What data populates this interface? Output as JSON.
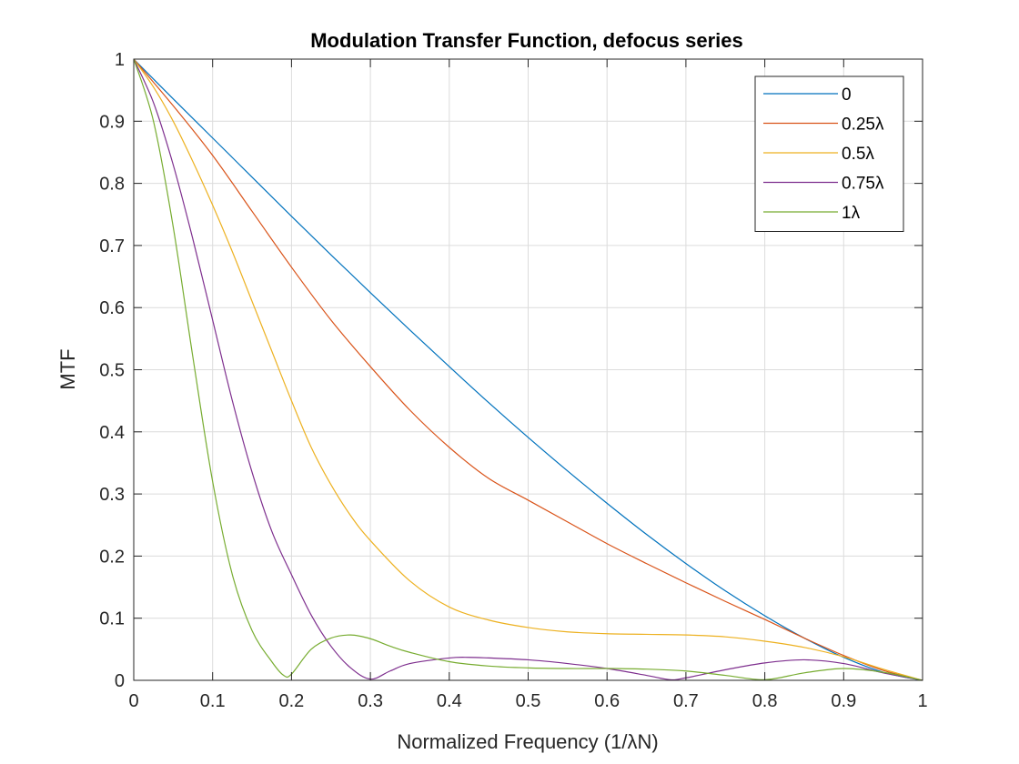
{
  "chart_data": {
    "type": "line",
    "title": "Modulation Transfer Function, defocus series",
    "xlabel": "Normalized Frequency (1/λN)",
    "ylabel": "MTF",
    "xlim": [
      0,
      1
    ],
    "ylim": [
      0,
      1
    ],
    "xticks": [
      0,
      0.1,
      0.2,
      0.3,
      0.4,
      0.5,
      0.6,
      0.7,
      0.8,
      0.9,
      1
    ],
    "xtick_labels": [
      "0",
      "0.1",
      "0.2",
      "0.3",
      "0.4",
      "0.5",
      "0.6",
      "0.7",
      "0.8",
      "0.9",
      "1"
    ],
    "yticks": [
      0,
      0.1,
      0.2,
      0.3,
      0.4,
      0.5,
      0.6,
      0.7,
      0.8,
      0.9,
      1
    ],
    "ytick_labels": [
      "0",
      "0.1",
      "0.2",
      "0.3",
      "0.4",
      "0.5",
      "0.6",
      "0.7",
      "0.8",
      "0.9",
      "1"
    ],
    "grid": true,
    "legend_position": "top-right",
    "series": [
      {
        "name": "0",
        "color": "#0072BD",
        "x": [
          0,
          0.05,
          0.1,
          0.15,
          0.2,
          0.25,
          0.3,
          0.35,
          0.4,
          0.45,
          0.5,
          0.55,
          0.6,
          0.65,
          0.7,
          0.75,
          0.8,
          0.85,
          0.9,
          0.95,
          1
        ],
        "y": [
          1,
          0.936,
          0.873,
          0.81,
          0.747,
          0.685,
          0.624,
          0.564,
          0.505,
          0.447,
          0.391,
          0.337,
          0.285,
          0.235,
          0.188,
          0.144,
          0.104,
          0.068,
          0.037,
          0.013,
          0
        ]
      },
      {
        "name": "0.25λ",
        "color": "#D95319",
        "x": [
          0,
          0.05,
          0.1,
          0.15,
          0.2,
          0.25,
          0.3,
          0.35,
          0.4,
          0.45,
          0.5,
          0.55,
          0.6,
          0.65,
          0.7,
          0.75,
          0.8,
          0.85,
          0.9,
          0.95,
          1
        ],
        "y": [
          1,
          0.925,
          0.845,
          0.755,
          0.665,
          0.58,
          0.505,
          0.435,
          0.375,
          0.325,
          0.29,
          0.255,
          0.22,
          0.188,
          0.157,
          0.127,
          0.098,
          0.068,
          0.04,
          0.016,
          0
        ]
      },
      {
        "name": "0.5λ",
        "color": "#EDB120",
        "x": [
          0,
          0.025,
          0.05,
          0.075,
          0.1,
          0.125,
          0.15,
          0.175,
          0.2,
          0.225,
          0.25,
          0.275,
          0.3,
          0.35,
          0.4,
          0.45,
          0.5,
          0.55,
          0.6,
          0.65,
          0.7,
          0.75,
          0.8,
          0.85,
          0.9,
          0.95,
          1
        ],
        "y": [
          1,
          0.955,
          0.9,
          0.835,
          0.765,
          0.69,
          0.61,
          0.53,
          0.45,
          0.375,
          0.315,
          0.265,
          0.225,
          0.16,
          0.118,
          0.097,
          0.085,
          0.078,
          0.075,
          0.074,
          0.073,
          0.07,
          0.063,
          0.053,
          0.038,
          0.018,
          0
        ]
      },
      {
        "name": "0.75λ",
        "color": "#7E2F8E",
        "x": [
          0,
          0.025,
          0.05,
          0.075,
          0.1,
          0.125,
          0.15,
          0.175,
          0.2,
          0.225,
          0.25,
          0.275,
          0.3,
          0.325,
          0.35,
          0.4,
          0.425,
          0.45,
          0.5,
          0.55,
          0.6,
          0.65,
          0.68,
          0.7,
          0.75,
          0.8,
          0.85,
          0.9,
          0.95,
          1
        ],
        "y": [
          1,
          0.93,
          0.83,
          0.71,
          0.58,
          0.45,
          0.335,
          0.24,
          0.17,
          0.105,
          0.055,
          0.02,
          0.002,
          0.015,
          0.027,
          0.036,
          0.037,
          0.036,
          0.033,
          0.027,
          0.019,
          0.008,
          0.001,
          0.004,
          0.017,
          0.028,
          0.033,
          0.027,
          0.012,
          0
        ]
      },
      {
        "name": "1λ",
        "color": "#77AC30",
        "x": [
          0,
          0.025,
          0.05,
          0.075,
          0.1,
          0.125,
          0.15,
          0.175,
          0.19,
          0.2,
          0.225,
          0.25,
          0.275,
          0.3,
          0.325,
          0.35,
          0.4,
          0.45,
          0.5,
          0.55,
          0.6,
          0.65,
          0.7,
          0.75,
          0.8,
          0.85,
          0.9,
          0.95,
          1
        ],
        "y": [
          1,
          0.9,
          0.73,
          0.52,
          0.32,
          0.17,
          0.08,
          0.03,
          0.008,
          0.01,
          0.05,
          0.068,
          0.073,
          0.067,
          0.055,
          0.045,
          0.03,
          0.023,
          0.02,
          0.019,
          0.019,
          0.018,
          0.015,
          0.008,
          0.001,
          0.012,
          0.019,
          0.013,
          0
        ]
      }
    ]
  }
}
